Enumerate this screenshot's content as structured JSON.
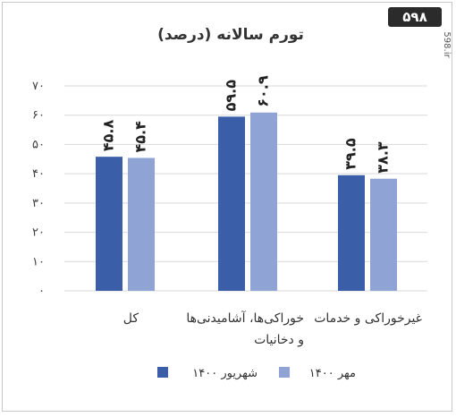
{
  "brand": {
    "logo_text": "۵۹۸",
    "site": "598.ir"
  },
  "chart_data": {
    "type": "bar",
    "title": "تورم سالانه (درصد)",
    "categories": [
      [
        "کل"
      ],
      [
        "خوراکی‌ها، آشامیدنی‌ها",
        "و دخانیات"
      ],
      [
        "غیرخوراکی و خدمات"
      ]
    ],
    "series": [
      {
        "name": "شهریور ۱۴۰۰",
        "values": [
          45.8,
          59.5,
          39.5
        ],
        "labels": [
          "۴۵.۸",
          "۵۹.۵",
          "۳۹.۵"
        ],
        "color": "#3A5FA8"
      },
      {
        "name": "مهر ۱۴۰۰",
        "values": [
          45.4,
          60.9,
          38.3
        ],
        "labels": [
          "۴۵.۴",
          "۶۰.۹",
          "۳۸.۳"
        ],
        "color": "#8FA4D4"
      }
    ],
    "ylim": [
      0,
      70
    ],
    "yticks": [
      0,
      10,
      20,
      30,
      40,
      50,
      60,
      70
    ],
    "ytick_labels": [
      "۰",
      "۱۰",
      "۲۰",
      "۳۰",
      "۴۰",
      "۵۰",
      "۶۰",
      "۷۰"
    ],
    "grid": true,
    "legend": "bottom",
    "xlabel": "",
    "ylabel": ""
  }
}
